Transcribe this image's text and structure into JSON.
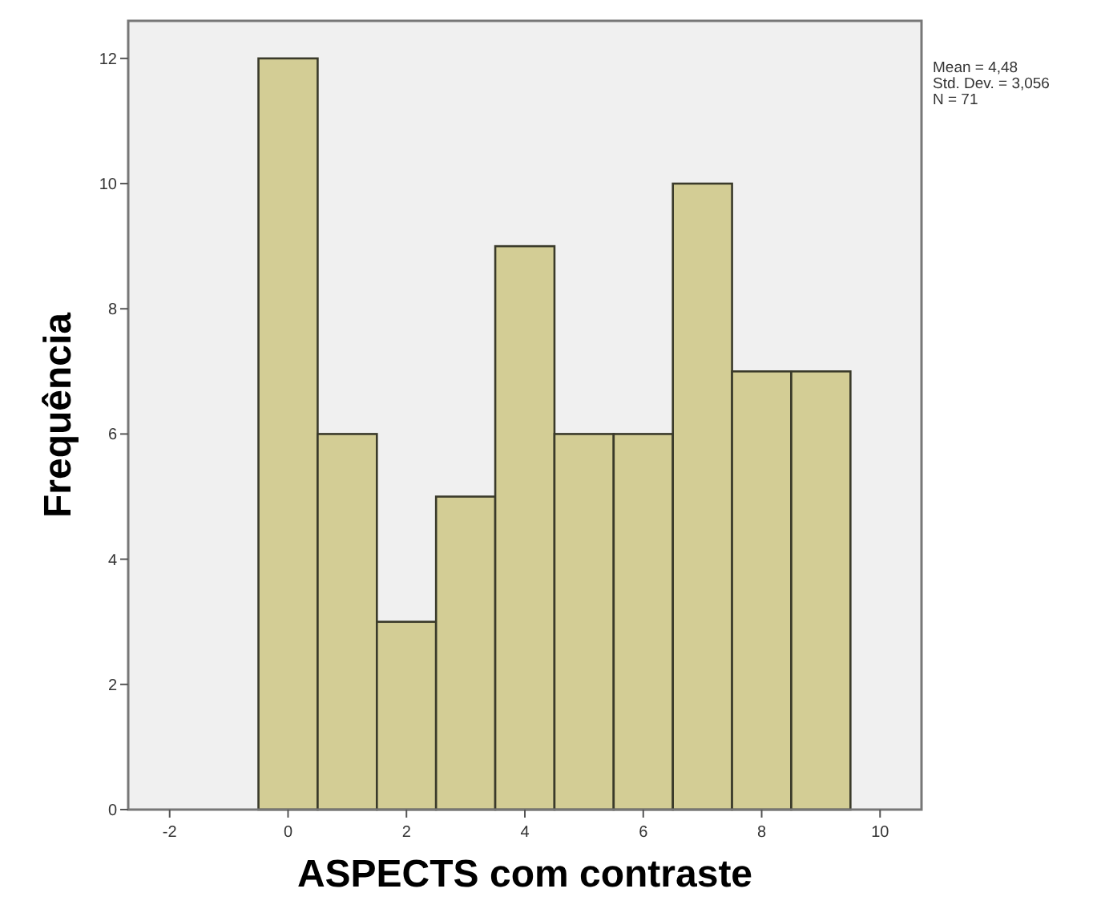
{
  "chart_data": {
    "type": "histogram",
    "xlabel": "ASPECTS com contraste",
    "ylabel": "Frequência",
    "bins": [
      -0.5,
      0.5,
      1.5,
      2.5,
      3.5,
      4.5,
      5.5,
      6.5,
      7.5,
      8.5,
      9.5
    ],
    "values": [
      12,
      6,
      3,
      5,
      9,
      6,
      6,
      10,
      7,
      7
    ],
    "color": "#d3cd95",
    "xlim": [
      -2.7,
      10.7
    ],
    "xticks": [
      -2,
      0,
      2,
      4,
      6,
      8,
      10
    ],
    "ylim": [
      0,
      12.6
    ],
    "yticks": [
      0,
      2,
      4,
      6,
      8,
      10,
      12
    ],
    "grid": false,
    "annotations": [
      "Mean = 4,48",
      "Std. Dev. = 3,056",
      "N = 71"
    ]
  }
}
